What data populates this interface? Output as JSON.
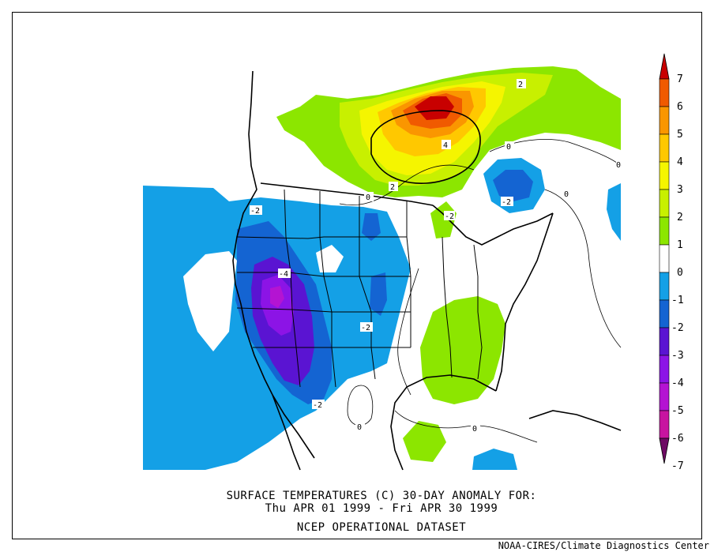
{
  "caption": {
    "line1": "SURFACE TEMPERATURES (C)   30-DAY ANOMALY FOR:",
    "line2": "Thu APR 01 1999 - Fri APR 30 1999",
    "line3": "NCEP OPERATIONAL DATASET"
  },
  "credit": "NOAA-CIRES/Climate Diagnostics Center",
  "colorbar": {
    "levels": [
      "7",
      "6",
      "5",
      "4",
      "3",
      "2",
      "1",
      "0",
      "-1",
      "-2",
      "-3",
      "-4",
      "-5",
      "-6",
      "-7"
    ],
    "colors": [
      "#c80000",
      "#f05a00",
      "#fa9600",
      "#ffc800",
      "#f5f500",
      "#c8f000",
      "#8ce600",
      "#ffffff",
      "#14a0e6",
      "#1464d2",
      "#5a14d2",
      "#8c14e6",
      "#b414d2",
      "#c814a0",
      "#6e0a64"
    ]
  },
  "contour_labels": [
    "2",
    "4",
    "2",
    "0",
    "-2",
    "0",
    "-2",
    "0",
    "-4",
    "-2",
    "-2",
    "0",
    "0",
    "0",
    "-2"
  ]
}
